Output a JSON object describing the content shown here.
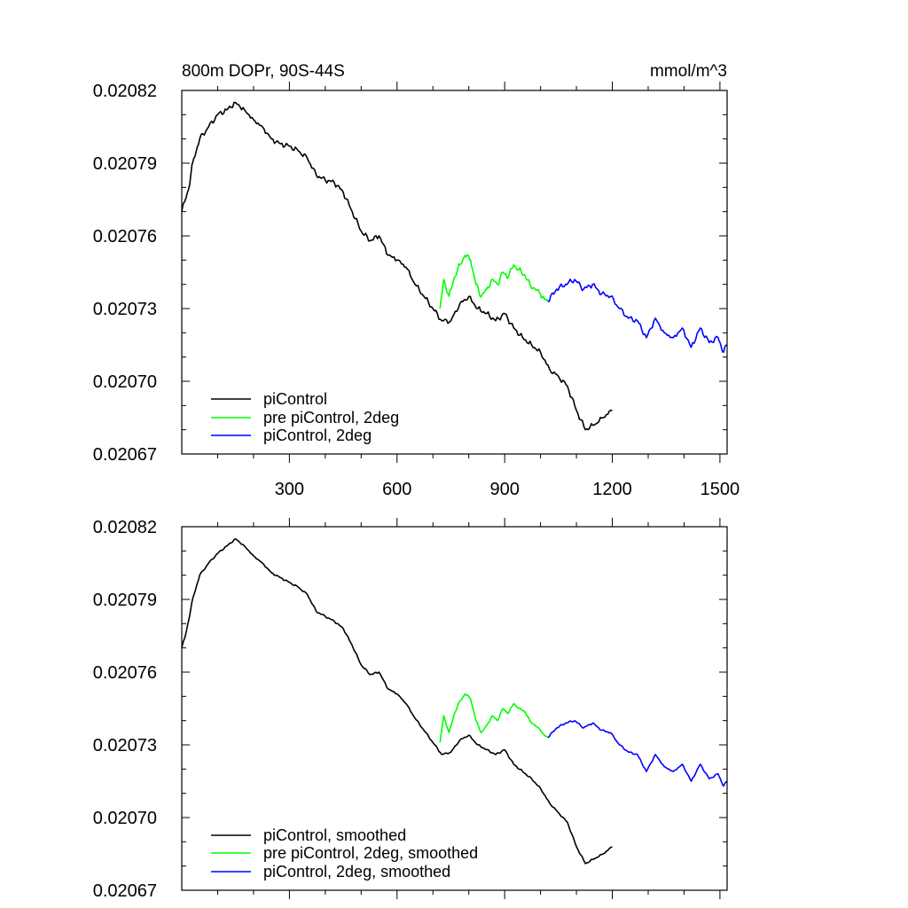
{
  "chart_data": [
    {
      "type": "line",
      "title": "800m DOPr, 90S-44S",
      "units": "mmol/m^3",
      "ylim": [
        0.02067,
        0.02082
      ],
      "yticks": [
        "0.02082",
        "0.02079",
        "0.02076",
        "0.02073",
        "0.02070",
        "0.02067"
      ],
      "xlim": [
        0,
        1520
      ],
      "xticks": [
        "300",
        "600",
        "900",
        "1200",
        "1500"
      ],
      "series": [
        {
          "name": "piControl",
          "color": "#000000",
          "x": [
            0,
            10,
            20,
            30,
            50,
            75,
            100,
            125,
            150,
            175,
            200,
            225,
            250,
            275,
            300,
            325,
            350,
            375,
            400,
            425,
            450,
            475,
            500,
            525,
            550,
            575,
            600,
            625,
            650,
            675,
            700,
            725,
            750,
            775,
            800,
            825,
            850,
            875,
            900,
            925,
            950,
            975,
            1000,
            1025,
            1050,
            1075,
            1100,
            1125,
            1150,
            1175,
            1200
          ],
          "y": [
            0.02077,
            0.020775,
            0.02078,
            0.02079,
            0.0208,
            0.020805,
            0.02081,
            0.020812,
            0.020815,
            0.020812,
            0.020808,
            0.020805,
            0.0208,
            0.020798,
            0.020797,
            0.020795,
            0.020792,
            0.020785,
            0.020783,
            0.020782,
            0.020778,
            0.02077,
            0.020762,
            0.020758,
            0.02076,
            0.020752,
            0.02075,
            0.020747,
            0.02074,
            0.020735,
            0.02073,
            0.020725,
            0.020725,
            0.020732,
            0.020735,
            0.02073,
            0.020728,
            0.020725,
            0.020728,
            0.020722,
            0.020718,
            0.020715,
            0.020712,
            0.020705,
            0.020702,
            0.020698,
            0.020688,
            0.02068,
            0.020682,
            0.020685,
            0.020688
          ]
        },
        {
          "name": "pre piControl, 2deg",
          "color": "#00ff00",
          "x": [
            720,
            730,
            745,
            760,
            775,
            790,
            805,
            820,
            835,
            850,
            865,
            880,
            895,
            910,
            925,
            940,
            955,
            970,
            985,
            1000,
            1010,
            1020
          ],
          "y": [
            0.02073,
            0.020742,
            0.020735,
            0.020743,
            0.020748,
            0.020752,
            0.02075,
            0.02074,
            0.020735,
            0.020738,
            0.020742,
            0.02074,
            0.020745,
            0.020743,
            0.020748,
            0.020746,
            0.020744,
            0.02074,
            0.020738,
            0.020736,
            0.020734,
            0.020733
          ]
        },
        {
          "name": "piControl, 2deg",
          "color": "#0000ff",
          "x": [
            1020,
            1045,
            1070,
            1095,
            1120,
            1145,
            1170,
            1195,
            1220,
            1245,
            1270,
            1295,
            1320,
            1345,
            1370,
            1395,
            1420,
            1445,
            1470,
            1495,
            1510,
            1520
          ],
          "y": [
            0.020733,
            0.020738,
            0.02074,
            0.020742,
            0.020738,
            0.02074,
            0.020736,
            0.020735,
            0.02073,
            0.020726,
            0.020725,
            0.020718,
            0.020726,
            0.02072,
            0.020718,
            0.020722,
            0.020714,
            0.020722,
            0.020716,
            0.020718,
            0.020712,
            0.020715
          ]
        }
      ],
      "legend": [
        "piControl",
        "pre piControl, 2deg",
        "piControl, 2deg"
      ]
    },
    {
      "type": "line",
      "title": "",
      "ylim": [
        0.02067,
        0.02082
      ],
      "yticks": [
        "0.02082",
        "0.02079",
        "0.02076",
        "0.02073",
        "0.02070",
        "0.02067"
      ],
      "xlim": [
        0,
        1520
      ],
      "xticks": [],
      "series": [
        {
          "name": "piControl, smoothed",
          "color": "#000000",
          "x": [
            0,
            10,
            20,
            30,
            50,
            75,
            100,
            125,
            150,
            175,
            200,
            225,
            250,
            275,
            300,
            325,
            350,
            375,
            400,
            425,
            450,
            475,
            500,
            525,
            550,
            575,
            600,
            625,
            650,
            675,
            700,
            725,
            750,
            775,
            800,
            825,
            850,
            875,
            900,
            925,
            950,
            975,
            1000,
            1025,
            1050,
            1075,
            1100,
            1125,
            1150,
            1175,
            1200
          ],
          "y": [
            0.02077,
            0.020775,
            0.020782,
            0.02079,
            0.0208,
            0.020805,
            0.020809,
            0.020812,
            0.020815,
            0.020812,
            0.020808,
            0.020805,
            0.020801,
            0.020799,
            0.020797,
            0.020795,
            0.020792,
            0.020785,
            0.020783,
            0.020781,
            0.020778,
            0.020771,
            0.020763,
            0.020759,
            0.02076,
            0.020753,
            0.020751,
            0.020747,
            0.020741,
            0.020736,
            0.020731,
            0.020726,
            0.020727,
            0.020732,
            0.020734,
            0.02073,
            0.020728,
            0.020726,
            0.020728,
            0.020722,
            0.020719,
            0.020716,
            0.020712,
            0.020706,
            0.020702,
            0.020698,
            0.020688,
            0.020681,
            0.020683,
            0.020685,
            0.020688
          ]
        },
        {
          "name": "pre piControl, 2deg, smoothed",
          "color": "#00ff00",
          "x": [
            720,
            730,
            745,
            760,
            775,
            790,
            805,
            820,
            835,
            850,
            865,
            880,
            895,
            910,
            925,
            940,
            955,
            970,
            985,
            1000,
            1010,
            1020
          ],
          "y": [
            0.020731,
            0.020742,
            0.020735,
            0.020743,
            0.020748,
            0.020751,
            0.020749,
            0.02074,
            0.020735,
            0.020738,
            0.020742,
            0.02074,
            0.020745,
            0.020743,
            0.020747,
            0.020745,
            0.020744,
            0.02074,
            0.020738,
            0.020736,
            0.020734,
            0.020733
          ]
        },
        {
          "name": "piControl, 2deg, smoothed",
          "color": "#0000ff",
          "x": [
            1020,
            1045,
            1070,
            1095,
            1120,
            1145,
            1170,
            1195,
            1220,
            1245,
            1270,
            1295,
            1320,
            1345,
            1370,
            1395,
            1420,
            1445,
            1470,
            1495,
            1510,
            1520
          ],
          "y": [
            0.020733,
            0.020737,
            0.020739,
            0.02074,
            0.020737,
            0.020739,
            0.020736,
            0.020735,
            0.02073,
            0.020727,
            0.020726,
            0.020719,
            0.020726,
            0.020721,
            0.020719,
            0.020722,
            0.020715,
            0.020722,
            0.020716,
            0.020718,
            0.020713,
            0.020715
          ]
        }
      ],
      "legend": [
        "piControl, smoothed",
        "pre piControl, 2deg, smoothed",
        "piControl, 2deg, smoothed"
      ]
    }
  ]
}
